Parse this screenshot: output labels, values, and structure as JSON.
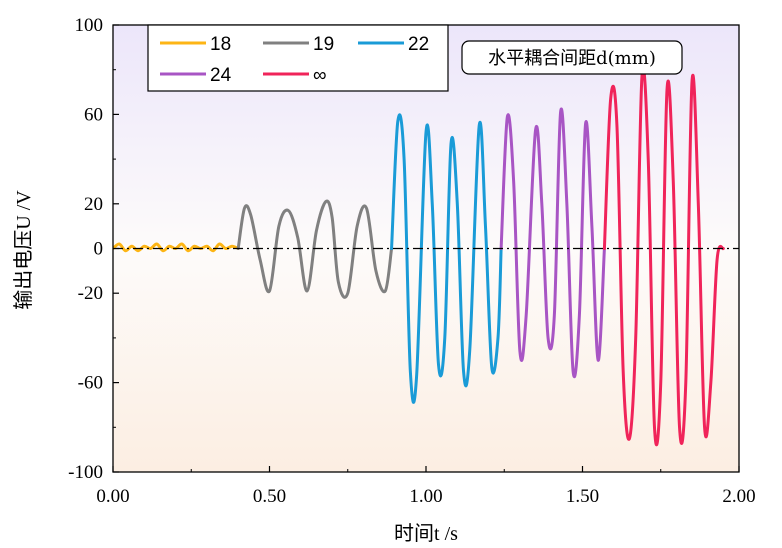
{
  "chart_data": {
    "type": "line",
    "xlabel": "时间t /s",
    "ylabel": "输出电压U /V",
    "xlim": [
      0,
      2.0
    ],
    "ylim": [
      -100,
      100
    ],
    "xticks": [
      "0.00",
      "0.50",
      "1.00",
      "1.50",
      "2.00"
    ],
    "yticks": [
      "100",
      "60",
      "20",
      "0",
      "-20",
      "-60",
      "-100"
    ],
    "legend_title": "水平耦合间距d(mm)",
    "legend_position": "top-left",
    "reference_line": {
      "y": 0,
      "style": "dash-dot",
      "color": "#000000"
    },
    "series": [
      {
        "name": "18",
        "color": "#FDB515",
        "x": [
          0.0,
          0.02,
          0.04,
          0.06,
          0.08,
          0.1,
          0.12,
          0.14,
          0.16,
          0.18,
          0.2,
          0.22,
          0.24,
          0.26,
          0.28,
          0.3,
          0.32,
          0.34,
          0.36,
          0.38,
          0.4
        ],
        "y": [
          0,
          2,
          -1,
          1,
          -1,
          1,
          0,
          2,
          -1,
          1,
          0,
          2,
          -1,
          1,
          0,
          1,
          -1,
          2,
          0,
          1,
          0
        ]
      },
      {
        "name": "19",
        "color": "#808080",
        "x": [
          0.4,
          0.42,
          0.44,
          0.47,
          0.5,
          0.53,
          0.56,
          0.59,
          0.62,
          0.65,
          0.68,
          0.7,
          0.72,
          0.75,
          0.78,
          0.81,
          0.84,
          0.87,
          0.89
        ],
        "y": [
          0,
          18,
          15,
          -5,
          -19,
          10,
          17,
          5,
          -19,
          8,
          21,
          14,
          -15,
          -20,
          10,
          18,
          -10,
          -19,
          0
        ]
      },
      {
        "name": "22",
        "color": "#1A9BD7",
        "x": [
          0.89,
          0.91,
          0.93,
          0.95,
          0.97,
          1.0,
          1.02,
          1.04,
          1.06,
          1.08,
          1.1,
          1.12,
          1.14,
          1.17,
          1.19,
          1.21,
          1.23,
          1.24
        ],
        "y": [
          0,
          57,
          40,
          -55,
          -57,
          52,
          20,
          -52,
          -40,
          47,
          20,
          -55,
          -45,
          55,
          10,
          -53,
          -40,
          0
        ]
      },
      {
        "name": "24",
        "color": "#A855C4",
        "x": [
          1.24,
          1.26,
          1.28,
          1.3,
          1.32,
          1.35,
          1.37,
          1.39,
          1.41,
          1.43,
          1.45,
          1.47,
          1.49,
          1.51,
          1.53,
          1.55,
          1.57
        ],
        "y": [
          0,
          59,
          30,
          -46,
          -30,
          53,
          20,
          -40,
          -30,
          61,
          20,
          -55,
          -30,
          56,
          10,
          -50,
          0
        ]
      },
      {
        "name": "∞",
        "color": "#F0245A",
        "x": [
          1.57,
          1.59,
          1.61,
          1.63,
          1.65,
          1.67,
          1.69,
          1.71,
          1.73,
          1.75,
          1.77,
          1.79,
          1.81,
          1.83,
          1.85,
          1.87,
          1.89,
          1.91,
          1.93,
          1.95
        ],
        "y": [
          0,
          67,
          55,
          -55,
          -85,
          -40,
          77,
          40,
          -80,
          -60,
          71,
          30,
          -80,
          -60,
          75,
          20,
          -80,
          -60,
          -5,
          0
        ]
      }
    ]
  }
}
